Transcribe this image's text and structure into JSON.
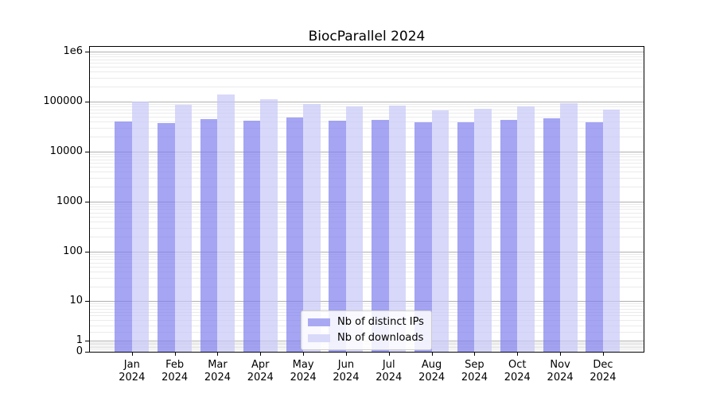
{
  "title": "BiocParallel 2024",
  "chart_data": {
    "type": "bar",
    "title": "BiocParallel 2024",
    "yscale": "asinh-log (log-like axis that includes 0)",
    "grid": true,
    "legend_position": "lower center",
    "categories": [
      "Jan 2024",
      "Feb 2024",
      "Mar 2024",
      "Apr 2024",
      "May 2024",
      "Jun 2024",
      "Jul 2024",
      "Aug 2024",
      "Sep 2024",
      "Oct 2024",
      "Nov 2024",
      "Dec 2024"
    ],
    "series": [
      {
        "name": "Nb of distinct IPs",
        "color": "#a9a9f3",
        "values": [
          40000,
          37000,
          44000,
          41000,
          48000,
          41000,
          43000,
          38000,
          39000,
          43000,
          46000,
          39000
        ]
      },
      {
        "name": "Nb of downloads",
        "color": "#d9d9fa",
        "values": [
          98000,
          87000,
          137000,
          112000,
          89000,
          79000,
          82000,
          66000,
          72000,
          80000,
          92000,
          70000
        ]
      }
    ],
    "ytick_labels": [
      "0",
      "1",
      "10",
      "100",
      "1000",
      "10000",
      "100000",
      "1e6"
    ],
    "ytick_values": [
      0,
      1,
      10,
      100,
      1000,
      10000,
      100000,
      1000000
    ],
    "ylim": [
      0,
      1350000
    ]
  },
  "colors": {
    "bar_ip_base": "#7f7ff0",
    "bar_dl_base": "#c8c8f8",
    "bar_alpha": 0.7,
    "grid_major": "#b0b0b0",
    "grid_minor": "#ebebeb",
    "spine": "#000000",
    "legend_border": "#cccccc"
  }
}
